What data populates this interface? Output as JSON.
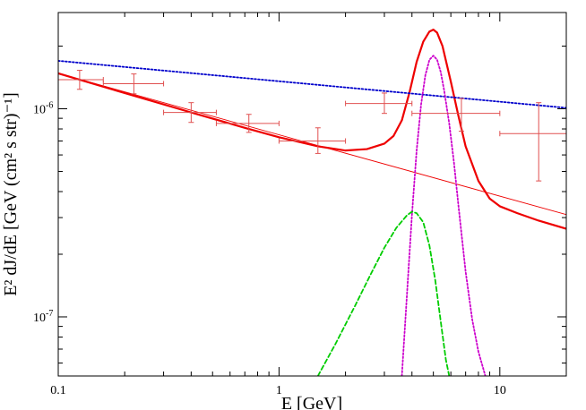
{
  "chart_data": {
    "type": "line",
    "title": "",
    "xlabel": "E [GeV]",
    "ylabel": "E² dJ/dE [GeV (cm² s str)⁻¹]",
    "xscale": "log",
    "yscale": "log",
    "xlim": [
      0.1,
      20
    ],
    "ylim": [
      5.2e-08,
      2.9e-06
    ],
    "grid": false,
    "legend": "none",
    "x_ticks": [
      {
        "value": 0.1,
        "label": "0.1"
      },
      {
        "value": 1,
        "label": "1"
      },
      {
        "value": 10,
        "label": "10"
      }
    ],
    "y_ticks": [
      {
        "value": 1e-07,
        "base": "10",
        "exp": "-7"
      },
      {
        "value": 1e-06,
        "base": "10",
        "exp": "-6"
      }
    ],
    "data_points": [
      {
        "x": 0.125,
        "y": 1.38e-06,
        "xlo": 0.1,
        "xhi": 0.16,
        "ylo": 1.24e-06,
        "yhi": 1.53e-06
      },
      {
        "x": 0.22,
        "y": 1.32e-06,
        "xlo": 0.16,
        "xhi": 0.3,
        "ylo": 1.18e-06,
        "yhi": 1.47e-06
      },
      {
        "x": 0.4,
        "y": 9.6e-07,
        "xlo": 0.3,
        "xhi": 0.52,
        "ylo": 8.6e-07,
        "yhi": 1.07e-06
      },
      {
        "x": 0.73,
        "y": 8.5e-07,
        "xlo": 0.52,
        "xhi": 1.0,
        "ylo": 7.7e-07,
        "yhi": 9.4e-07
      },
      {
        "x": 1.5,
        "y": 7e-07,
        "xlo": 1.0,
        "xhi": 2.0,
        "ylo": 6.1e-07,
        "yhi": 8.1e-07
      },
      {
        "x": 3.0,
        "y": 1.06e-06,
        "xlo": 2.0,
        "xhi": 4.0,
        "ylo": 9.5e-07,
        "yhi": 1.19e-06
      },
      {
        "x": 6.7,
        "y": 9.5e-07,
        "xlo": 4.0,
        "xhi": 10.0,
        "ylo": 7.8e-07,
        "yhi": 1.12e-06
      },
      {
        "x": 15.0,
        "y": 7.6e-07,
        "xlo": 10.0,
        "xhi": 20.0,
        "ylo": 4.5e-07,
        "yhi": 1.07e-06
      }
    ],
    "series": [
      {
        "color": "#ee0000",
        "style": "solid",
        "width": "thick",
        "x": [
          0.1,
          0.2,
          0.4,
          0.7,
          1.0,
          1.5,
          2.0,
          2.5,
          3.0,
          3.3,
          3.6,
          3.9,
          4.2,
          4.5,
          4.8,
          5.0,
          5.2,
          5.5,
          6.0,
          6.5,
          7.0,
          8.0,
          9.0,
          10,
          12,
          15,
          20
        ],
        "y": [
          1.48e-06,
          1.19e-06,
          9.6e-07,
          8.1e-07,
          7.3e-07,
          6.6e-07,
          6.3e-07,
          6.4e-07,
          6.8e-07,
          7.4e-07,
          8.8e-07,
          1.2e-06,
          1.68e-06,
          2.1e-06,
          2.35e-06,
          2.4e-06,
          2.32e-06,
          2e-06,
          1.35e-06,
          9.2e-07,
          6.6e-07,
          4.5e-07,
          3.7e-07,
          3.4e-07,
          3.15e-07,
          2.9e-07,
          2.65e-07
        ]
      },
      {
        "color": "#ee0000",
        "style": "solid",
        "width": "thin",
        "x": [
          0.1,
          20
        ],
        "y": [
          1.48e-06,
          3.1e-07
        ]
      },
      {
        "color": "#0000cc",
        "style": "dotted",
        "width": "medium",
        "x": [
          0.1,
          20
        ],
        "y": [
          1.7e-06,
          1.01e-06
        ]
      },
      {
        "color": "#cc00cc",
        "style": "dotted",
        "width": "medium",
        "x": [
          3.6,
          3.8,
          4.0,
          4.2,
          4.4,
          4.6,
          4.8,
          5.0,
          5.2,
          5.4,
          5.6,
          5.9,
          6.2,
          6.5,
          7.0,
          7.5,
          8.0,
          8.6
        ],
        "y": [
          5.2e-08,
          1.3e-07,
          3.1e-07,
          6.3e-07,
          1.05e-06,
          1.45e-06,
          1.72e-06,
          1.8e-06,
          1.72e-06,
          1.5e-06,
          1.22e-06,
          8.5e-07,
          5.5e-07,
          3.4e-07,
          1.65e-07,
          9.7e-08,
          6.8e-08,
          5.2e-08
        ]
      },
      {
        "color": "#00cc00",
        "style": "dashed",
        "width": "medium",
        "x": [
          1.5,
          1.8,
          2.2,
          2.6,
          3.0,
          3.4,
          3.8,
          4.0,
          4.2,
          4.5,
          4.8,
          5.1,
          5.4,
          5.7,
          5.9
        ],
        "y": [
          5.2e-08,
          7.4e-08,
          1.12e-07,
          1.6e-07,
          2.15e-07,
          2.68e-07,
          3.08e-07,
          3.2e-07,
          3.15e-07,
          2.85e-07,
          2.2e-07,
          1.5e-07,
          9.5e-08,
          6.2e-08,
          5.2e-08
        ]
      }
    ]
  }
}
